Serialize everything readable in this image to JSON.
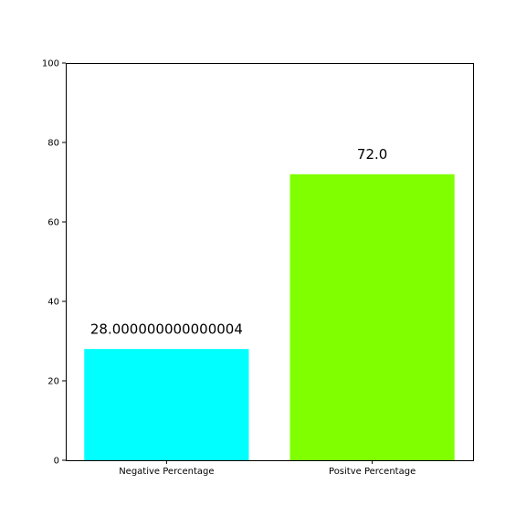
{
  "chart_data": {
    "type": "bar",
    "title": "",
    "xlabel": "",
    "ylabel": "",
    "categories": [
      "Negative Percentage",
      "Positve Percentage"
    ],
    "values": [
      28.000000000000004,
      72.0
    ],
    "data_labels": [
      "28.000000000000004",
      "72.0"
    ],
    "colors": [
      "#00ffff",
      "#7fff00"
    ],
    "ylim": [
      0,
      100
    ],
    "yticks": [
      0,
      20,
      40,
      60,
      80,
      100
    ],
    "grid": false,
    "legend": "none"
  }
}
